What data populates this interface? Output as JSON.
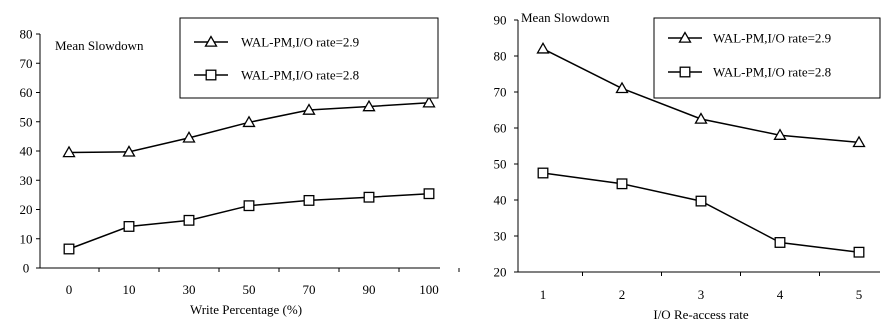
{
  "chart_data": [
    {
      "type": "line",
      "xlabel": "Write Percentage (%)",
      "ylabel": "Mean Slowdown",
      "categories": [
        "0",
        "10",
        "30",
        "50",
        "70",
        "90",
        "100"
      ],
      "ylim": [
        0,
        80
      ],
      "yticks": [
        "0",
        "10",
        "20",
        "30",
        "40",
        "50",
        "60",
        "70",
        "80"
      ],
      "grid": false,
      "legend_position": "top-right",
      "series": [
        {
          "name": "WAL-PM,I/O rate=2.9",
          "marker": "triangle",
          "values": [
            39.5,
            39.7,
            44.5,
            49.8,
            54,
            55.2,
            56.5
          ]
        },
        {
          "name": "WAL-PM,I/O rate=2.8",
          "marker": "square",
          "values": [
            6.5,
            14.2,
            16.3,
            21.3,
            23.1,
            24.2,
            25.4
          ]
        }
      ]
    },
    {
      "type": "line",
      "xlabel": "I/O Re-access rate",
      "ylabel": "Mean Slowdown",
      "categories": [
        "1",
        "2",
        "3",
        "4",
        "5"
      ],
      "ylim": [
        20,
        90
      ],
      "yticks": [
        "20",
        "30",
        "40",
        "50",
        "60",
        "70",
        "80",
        "90"
      ],
      "grid": false,
      "legend_position": "top-right",
      "series": [
        {
          "name": "WAL-PM,I/O rate=2.9",
          "marker": "triangle",
          "values": [
            82,
            71,
            62.5,
            58,
            56
          ]
        },
        {
          "name": "WAL-PM,I/O rate=2.8",
          "marker": "square",
          "values": [
            47.5,
            44.5,
            39.7,
            28.2,
            25.5
          ]
        }
      ]
    }
  ]
}
